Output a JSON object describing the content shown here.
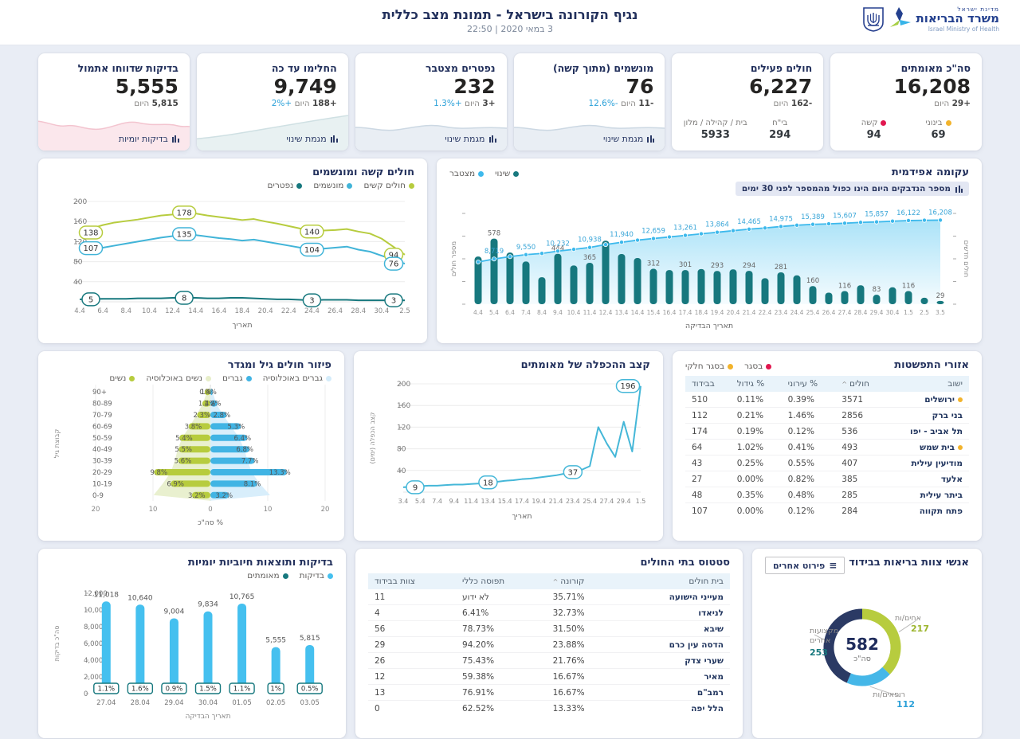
{
  "header": {
    "title": "נגיף הקורונה בישראל - תמונת מצב כללית",
    "subtitle": "3 במאי 2020 | 22:50",
    "logo": {
      "state": "מדינת ישראל",
      "ministry": "משרד הבריאות",
      "english": "Israel Ministry of Health"
    }
  },
  "kpis": [
    {
      "title": "סה\"כ מאומתים",
      "value": "16,208",
      "delta": "+29",
      "delta_label": "היום",
      "pct": "",
      "sub": [
        {
          "label": "בינוני",
          "dot": "#f2b32c",
          "value": "69"
        },
        {
          "label": "קשה",
          "dot": "#e1174f",
          "value": "94"
        }
      ]
    },
    {
      "title": "חולים פעילים",
      "value": "6,227",
      "delta": "-162",
      "delta_label": "היום",
      "pct": "",
      "sub": [
        {
          "label": "בי\"ח",
          "value": "294"
        },
        {
          "label": "בית / קהילה / מלון",
          "value": "5933"
        }
      ]
    },
    {
      "title": "מונשמים (מתוך קשה)",
      "value": "76",
      "delta": "-11",
      "delta_label": "היום",
      "pct": "-12.6%",
      "footer": "מגמת שינוי",
      "spark": "blue"
    },
    {
      "title": "נפטרים מצטבר",
      "value": "232",
      "delta": "+3",
      "delta_label": "היום",
      "pct": "+1.3%",
      "footer": "מגמת שינוי",
      "spark": "blue"
    },
    {
      "title": "החלימו עד כה",
      "value": "9,749",
      "delta": "+188",
      "delta_label": "היום",
      "pct": "+2%",
      "footer": "מגמת שינוי",
      "spark": "teal"
    },
    {
      "title": "בדיקות שדווחו אתמול",
      "value": "5,555",
      "delta": "5,815",
      "delta_label": "היום",
      "pct": "",
      "footer": "בדיקות יומיות",
      "spark": "pink"
    }
  ],
  "chart_data": [
    {
      "type": "line",
      "title": "חולים קשה ומונשמים",
      "xlabel": "תאריך",
      "x_ticks": [
        "4.4",
        "6.4",
        "8.4",
        "10.4",
        "12.4",
        "14.4",
        "16.4",
        "18.4",
        "20.4",
        "22.4",
        "24.4",
        "26.4",
        "28.4",
        "30.4",
        "2.5"
      ],
      "ylim": [
        0,
        200
      ],
      "y_ticks": [
        40,
        80,
        120,
        160,
        200
      ],
      "series": [
        {
          "name": "חולים קשים",
          "color": "#b7cc3e",
          "values": [
            138,
            146,
            153,
            158,
            161,
            164,
            168,
            172,
            174,
            178,
            176,
            172,
            169,
            166,
            163,
            165,
            160,
            156,
            151,
            146,
            140,
            142,
            143,
            145,
            140,
            136,
            126,
            110,
            94
          ],
          "labels": [
            {
              "i": 0,
              "v": "138"
            },
            {
              "i": 9,
              "v": "178"
            },
            {
              "i": 20,
              "v": "140"
            },
            {
              "i": 28,
              "v": "94"
            }
          ]
        },
        {
          "name": "מונשמים",
          "color": "#41b4d8",
          "values": [
            107,
            106,
            108,
            112,
            116,
            120,
            124,
            128,
            131,
            135,
            133,
            130,
            127,
            125,
            122,
            124,
            120,
            116,
            112,
            108,
            104,
            106,
            108,
            110,
            104,
            100,
            92,
            84,
            76
          ],
          "labels": [
            {
              "i": 0,
              "v": "107"
            },
            {
              "i": 9,
              "v": "135"
            },
            {
              "i": 20,
              "v": "104"
            },
            {
              "i": 28,
              "v": "76"
            }
          ]
        },
        {
          "name": "נפטרים",
          "color": "#17787e",
          "values": [
            5,
            5,
            6,
            6,
            6,
            7,
            7,
            7,
            8,
            8,
            8,
            7,
            7,
            8,
            8,
            7,
            6,
            5,
            5,
            4,
            3,
            4,
            4,
            4,
            3,
            3,
            3,
            3,
            3
          ],
          "labels": [
            {
              "i": 0,
              "v": "5"
            },
            {
              "i": 9,
              "v": "8"
            },
            {
              "i": 20,
              "v": "3"
            },
            {
              "i": 28,
              "v": "3"
            }
          ]
        }
      ]
    },
    {
      "type": "combo",
      "title": "עקומה אפידמית",
      "note": "מספר הנדבקים היום הינו כפול מהמספר לפני 30 ימים",
      "legend": [
        {
          "name": "שינוי",
          "color": "#17787e"
        },
        {
          "name": "מצטבר",
          "color": "#3db9ec"
        }
      ],
      "xlabel": "תאריך הבדיקה",
      "ylabel_left": "מספר חולים",
      "ylabel_right": "חולים חדשים",
      "x": [
        "4.4",
        "5.4",
        "6.4",
        "7.4",
        "8.4",
        "9.4",
        "10.4",
        "11.4",
        "12.4",
        "13.4",
        "14.4",
        "15.4",
        "16.4",
        "17.4",
        "18.4",
        "19.4",
        "20.4",
        "21.4",
        "22.4",
        "23.4",
        "24.4",
        "25.4",
        "26.4",
        "27.4",
        "28.4",
        "29.4",
        "30.4",
        "1.5",
        "2.5",
        "3.5"
      ],
      "bars": {
        "name": "שינוי",
        "color": "#17787e",
        "axis_max": 800,
        "values": [
          420,
          578,
          455,
          376,
          238,
          444,
          341,
          365,
          560,
          442,
          407,
          312,
          301,
          301,
          310,
          293,
          307,
          294,
          229,
          281,
          254,
          160,
          102,
          116,
          167,
          83,
          149,
          116,
          57,
          29
        ],
        "labeled": {
          "1": "578",
          "5": "444",
          "7": "365",
          "11": "312",
          "13": "301",
          "15": "293",
          "17": "294",
          "19": "281",
          "21": "160",
          "23": "116",
          "25": "83",
          "27": "116",
          "29": "29"
        }
      },
      "line": {
        "name": "מצטבר",
        "color": "#3db9ec",
        "axis_max": 17500,
        "values": [
          8141,
          8719,
          9174,
          9550,
          9788,
          10232,
          10573,
          10938,
          11498,
          11940,
          12347,
          12659,
          12960,
          13261,
          13571,
          13864,
          14171,
          14465,
          14694,
          14975,
          15229,
          15389,
          15491,
          15607,
          15774,
          15857,
          16006,
          16122,
          16179,
          16208
        ],
        "labeled": {
          "1": "8,719",
          "3": "9,550",
          "5": "10,232",
          "7": "10,938",
          "9": "11,940",
          "11": "12,659",
          "13": "13,261",
          "15": "13,864",
          "17": "14,465",
          "19": "14,975",
          "21": "15,389",
          "23": "15,607",
          "25": "15,857",
          "27": "16,122",
          "29": "16,208"
        }
      }
    },
    {
      "type": "pyramid_bar",
      "title": "פיזור חולים גיל ומגדר",
      "legend": [
        {
          "name": "גברים באוכלוסיה",
          "color": "#d4ecfa"
        },
        {
          "name": "גברים",
          "color": "#41b4e4"
        },
        {
          "name": "נשים באוכלוסיה",
          "color": "#e7eec9"
        },
        {
          "name": "נשים",
          "color": "#b7cc3e"
        }
      ],
      "age_groups": [
        "+90",
        "80-89",
        "70-79",
        "60-69",
        "50-59",
        "40-49",
        "30-39",
        "20-29",
        "10-19",
        "0-9"
      ],
      "women": [
        1,
        1.4,
        2.3,
        3.8,
        5.4,
        5.5,
        5.6,
        9.8,
        6.9,
        3.2
      ],
      "men": [
        0.4,
        1.2,
        2.8,
        5.3,
        6.4,
        6.8,
        7.7,
        13.3,
        8.1,
        3.2
      ],
      "women_labels": [
        "1%",
        "1.4%",
        "2.3%",
        "3.8%",
        "5.4%",
        "5.5%",
        "5.6%",
        "9.8%",
        "6.9%",
        "3.2%"
      ],
      "men_labels": [
        "0.4%",
        "1.2%",
        "2.8%",
        "5.3%",
        "6.4%",
        "6.8%",
        "7.7%",
        "13.3%",
        "8.1%",
        "3.2%"
      ],
      "women_pop": [
        0.6,
        1.3,
        2.4,
        3.6,
        4.9,
        5.7,
        6.2,
        6.9,
        8.3,
        9.9
      ],
      "men_pop": [
        0.4,
        1.0,
        2.2,
        3.6,
        5.0,
        5.9,
        6.5,
        7.2,
        8.6,
        10.4
      ],
      "x_ticks": [
        "20",
        "10",
        "0",
        "10",
        "20"
      ],
      "xlim": 20,
      "xlabel": "% סה\"כ",
      "ylabel": "קבוצת גיל"
    },
    {
      "type": "line",
      "title": "קצב ההכפלה של מאומתים",
      "color": "#45b7d8",
      "x_ticks": [
        "3.4",
        "5.4",
        "7.4",
        "9.4",
        "11.4",
        "13.4",
        "15.4",
        "17.4",
        "19.4",
        "21.4",
        "23.4",
        "25.4",
        "27.4",
        "29.4",
        "1.5"
      ],
      "values": [
        9,
        10,
        11,
        12,
        12,
        13,
        14,
        14,
        15,
        16,
        18,
        19,
        21,
        22,
        24,
        25,
        27,
        29,
        31,
        34,
        37,
        41,
        48,
        120,
        90,
        65,
        130,
        75,
        196
      ],
      "labels": [
        {
          "i": 0,
          "v": "9"
        },
        {
          "i": 10,
          "v": "18"
        },
        {
          "i": 20,
          "v": "37"
        },
        {
          "i": 28,
          "v": "196"
        }
      ],
      "ylim": [
        0,
        200
      ],
      "y_ticks": [
        40,
        80,
        120,
        160,
        200
      ],
      "ylabel": "קצב הכפלה (ימים)",
      "xlabel": "תאריך"
    },
    {
      "type": "bar",
      "title": "בדיקות ותוצאות חיוביות יומיות",
      "legend": [
        {
          "name": "בדיקות",
          "color": "#45c0ef"
        },
        {
          "name": "מאומתים",
          "color": "#17787e"
        }
      ],
      "categories": [
        "27.04",
        "28.04",
        "29.04",
        "30.04",
        "01.05",
        "02.05",
        "03.05"
      ],
      "tests": [
        11018,
        10640,
        9004,
        9834,
        10765,
        5555,
        5815
      ],
      "test_labels": [
        "11,018",
        "10,640",
        "9,004",
        "9,834",
        "10,765",
        "5,555",
        "5,815"
      ],
      "confirmed": [
        121,
        170,
        81,
        148,
        118,
        56,
        29
      ],
      "pct_labels": [
        "1.1%",
        "1.6%",
        "0.9%",
        "1.5%",
        "1.1%",
        "1%",
        "0.5%"
      ],
      "ylim": [
        0,
        12000
      ],
      "y_ticks": [
        "0",
        "2,000",
        "4,000",
        "6,000",
        "8,000",
        "10,000",
        "12,000"
      ],
      "ylabel": "סה\"כ בדיקות",
      "xlabel": "תאריך הבדיקה"
    },
    {
      "type": "pie",
      "title": "אנשי צוות בריאות בבידוד",
      "button": "פירוט אחרים",
      "center_value": "582",
      "center_label": "סה\"כ",
      "segments": [
        {
          "name": "אחים/ות",
          "value": 217,
          "color": "#b7cc3e",
          "value_color": "#9cb52d"
        },
        {
          "name": "רופאים/ות",
          "value": 112,
          "color": "#45b7e8",
          "value_color": "#2ba0d8"
        },
        {
          "name": "מקצועות אחרים",
          "value": 253,
          "color": "#2b3a64",
          "value_color": "#17787e"
        }
      ]
    }
  ],
  "spread_table": {
    "title": "אזורי התפשטות",
    "legend": [
      {
        "name": "בסגר",
        "color": "#e1174f"
      },
      {
        "name": "בסגר חלקי",
        "color": "#f2b32c"
      }
    ],
    "columns": [
      {
        "label": "ישוב",
        "key": "city"
      },
      {
        "label": "חולים",
        "key": "cases",
        "sort": true
      },
      {
        "label": "% עירוני",
        "key": "urban"
      },
      {
        "label": "% גידול",
        "key": "growth"
      },
      {
        "label": "בבידוד",
        "key": "isolated"
      }
    ],
    "rows": [
      {
        "city": "ירושלים",
        "dot": "#f2b32c",
        "cases": "3571",
        "urban": "0.39%",
        "growth": "0.11%",
        "isolated": "510"
      },
      {
        "city": "בני ברק",
        "cases": "2856",
        "urban": "1.46%",
        "growth": "0.21%",
        "isolated": "112"
      },
      {
        "city": "תל אביב - יפו",
        "cases": "536",
        "urban": "0.12%",
        "growth": "0.19%",
        "isolated": "174"
      },
      {
        "city": "בית שמש",
        "dot": "#f2b32c",
        "cases": "493",
        "urban": "0.41%",
        "growth": "1.02%",
        "isolated": "64"
      },
      {
        "city": "מודיעין עילית",
        "cases": "407",
        "urban": "0.55%",
        "growth": "0.25%",
        "isolated": "43"
      },
      {
        "city": "אלעד",
        "cases": "385",
        "urban": "0.82%",
        "growth": "0.00%",
        "isolated": "27"
      },
      {
        "city": "ביתר עילית",
        "cases": "285",
        "urban": "0.48%",
        "growth": "0.35%",
        "isolated": "48"
      },
      {
        "city": "פתח תקווה",
        "cases": "284",
        "urban": "0.12%",
        "growth": "0.00%",
        "isolated": "107"
      }
    ]
  },
  "hospital_table": {
    "title": "סטטוס בתי החולים",
    "columns": [
      {
        "label": "בית חולים"
      },
      {
        "label": "קורונה",
        "sort": true
      },
      {
        "label": "תפוסה כללי"
      },
      {
        "label": "צוות בבידוד"
      }
    ],
    "rows": [
      [
        "מעייני הישועה",
        "35.71%",
        "לא ידוע",
        "11"
      ],
      [
        "לניאדו",
        "32.73%",
        "6.41%",
        "4"
      ],
      [
        "שיבא",
        "31.50%",
        "78.73%",
        "56"
      ],
      [
        "הדסה עין כרם",
        "23.88%",
        "94.20%",
        "29"
      ],
      [
        "שערי צדק",
        "21.76%",
        "75.43%",
        "26"
      ],
      [
        "מאיר",
        "16.67%",
        "59.38%",
        "12"
      ],
      [
        "רמב\"ם",
        "16.67%",
        "76.91%",
        "13"
      ],
      [
        "הלל יפה",
        "13.33%",
        "62.52%",
        "0"
      ]
    ]
  }
}
